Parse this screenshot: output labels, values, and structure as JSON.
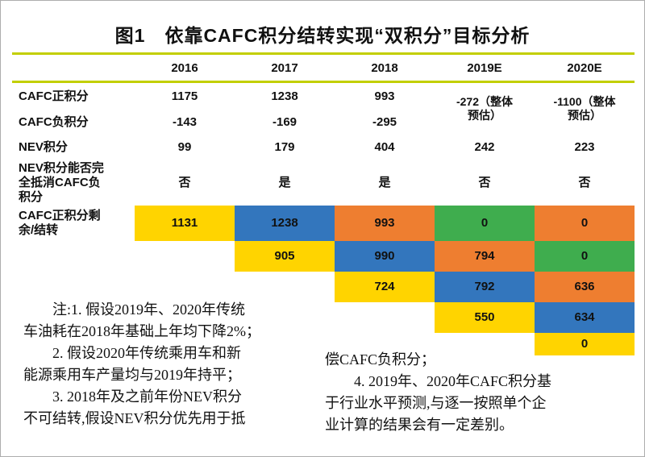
{
  "title": "图1　依靠CAFC积分结转实现“双积分”目标分析",
  "header": {
    "years": [
      "2016",
      "2017",
      "2018",
      "2019E",
      "2020E"
    ]
  },
  "rows": {
    "cafcPositive": {
      "label": "CAFC正积分",
      "values": [
        "1175",
        "1238",
        "993"
      ]
    },
    "cafcNegative": {
      "label": "CAFC负积分",
      "values": [
        "-143",
        "-169",
        "-295"
      ]
    },
    "estimate2019": "-272（整体\n预估）",
    "estimate2020": "-1100（整体\n预估）",
    "nev": {
      "label": "NEV积分",
      "values": [
        "99",
        "179",
        "404",
        "242",
        "223"
      ]
    },
    "offset": {
      "label": "NEV积分能否完\n全抵消CAFC负\n积分",
      "values": [
        "否",
        "是",
        "是",
        "否",
        "否"
      ]
    },
    "carryLabel": "CAFC正积分剩\n余/结转"
  },
  "carry": {
    "row1": [
      "1131",
      "1238",
      "993",
      "0",
      "0"
    ],
    "row2": [
      "905",
      "990",
      "794",
      "0"
    ],
    "row3": [
      "724",
      "792",
      "636"
    ],
    "row4": [
      "550",
      "634"
    ],
    "row5": [
      "0"
    ]
  },
  "notes": {
    "left": "　　注:1. 假设2019年、2020年传统\n车油耗在2018年基础上年均下降2%；\n　　2. 假设2020年传统乘用车和新\n能源乘用车产量均与2019年持平；\n　　3. 2018年及之前年份NEV积分\n不可结转,假设NEV积分优先用于抵",
    "right": "偿CAFC负积分；\n　　4. 2019年、2020年CAFC积分基\n于行业水平预测,与逐一按照单个企\n业计算的结果会有一定差别。"
  },
  "colors": {
    "yellow": "#FFD400",
    "blue": "#3376BD",
    "orange": "#EE7E30",
    "green": "#3FAD4E",
    "rule": "#C2CF00"
  },
  "chart_data": {
    "type": "table",
    "title": "图1 依靠CAFC积分结转实现“双积分”目标分析",
    "columns": [
      "2016",
      "2017",
      "2018",
      "2019E",
      "2020E"
    ],
    "rows": [
      {
        "label": "CAFC正积分",
        "values": [
          1175,
          1238,
          993,
          "-272（整体预估）",
          "-1100（整体预估）"
        ]
      },
      {
        "label": "CAFC负积分",
        "values": [
          -143,
          -169,
          -295,
          null,
          null
        ]
      },
      {
        "label": "NEV积分",
        "values": [
          99,
          179,
          404,
          242,
          223
        ]
      },
      {
        "label": "NEV积分能否完全抵消CAFC负积分",
        "values": [
          "否",
          "是",
          "是",
          "否",
          "否"
        ]
      },
      {
        "label": "CAFC正积分剩余/结转",
        "matrix": [
          [
            1131,
            1238,
            993,
            0,
            0
          ],
          [
            null,
            905,
            990,
            794,
            0
          ],
          [
            null,
            null,
            724,
            792,
            636
          ],
          [
            null,
            null,
            null,
            550,
            634
          ],
          [
            null,
            null,
            null,
            null,
            0
          ]
        ],
        "matrix_colors": [
          [
            "yellow",
            "blue",
            "orange",
            "green",
            "orange"
          ],
          [
            null,
            "yellow",
            "blue",
            "orange",
            "green"
          ],
          [
            null,
            null,
            "yellow",
            "blue",
            "orange"
          ],
          [
            null,
            null,
            null,
            "yellow",
            "blue"
          ],
          [
            null,
            null,
            null,
            null,
            "yellow"
          ]
        ]
      }
    ],
    "notes": [
      "假设2019年、2020年传统车油耗在2018年基础上年均下降2%；",
      "假设2020年传统乘用车和新能源乘用车产量均与2019年持平；",
      "2018年及之前年份NEV积分不可结转,假设NEV积分优先用于抵偿CAFC负积分；",
      "2019年、2020年CAFC积分基于行业水平预测,与逐一按照单个企业计算的结果会有一定差别。"
    ]
  }
}
